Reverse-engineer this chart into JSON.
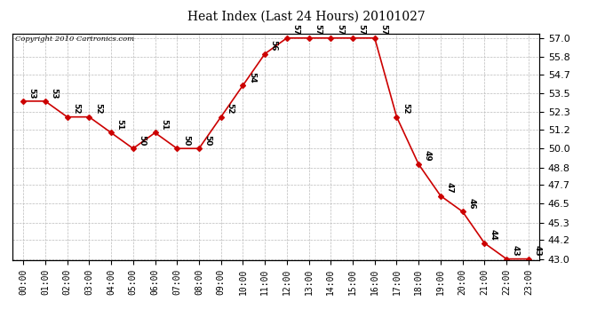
{
  "title": "Heat Index (Last 24 Hours) 20101027",
  "copyright": "Copyright 2010 Cartronics.com",
  "hours": [
    "00:00",
    "01:00",
    "02:00",
    "03:00",
    "04:00",
    "05:00",
    "06:00",
    "07:00",
    "08:00",
    "09:00",
    "10:00",
    "11:00",
    "12:00",
    "13:00",
    "14:00",
    "15:00",
    "16:00",
    "17:00",
    "18:00",
    "19:00",
    "20:00",
    "21:00",
    "22:00",
    "23:00"
  ],
  "values": [
    53,
    53,
    52,
    52,
    51,
    50,
    51,
    50,
    50,
    52,
    54,
    56,
    57,
    57,
    57,
    57,
    57,
    52,
    49,
    47,
    46,
    44,
    43,
    43
  ],
  "line_color": "#cc0000",
  "marker_color": "#cc0000",
  "bg_color": "#ffffff",
  "grid_color": "#bbbbbb",
  "ylim_min": 43.0,
  "ylim_max": 57.0,
  "yticks": [
    43.0,
    44.2,
    45.3,
    46.5,
    47.7,
    48.8,
    50.0,
    51.2,
    52.3,
    53.5,
    54.7,
    55.8,
    57.0
  ]
}
